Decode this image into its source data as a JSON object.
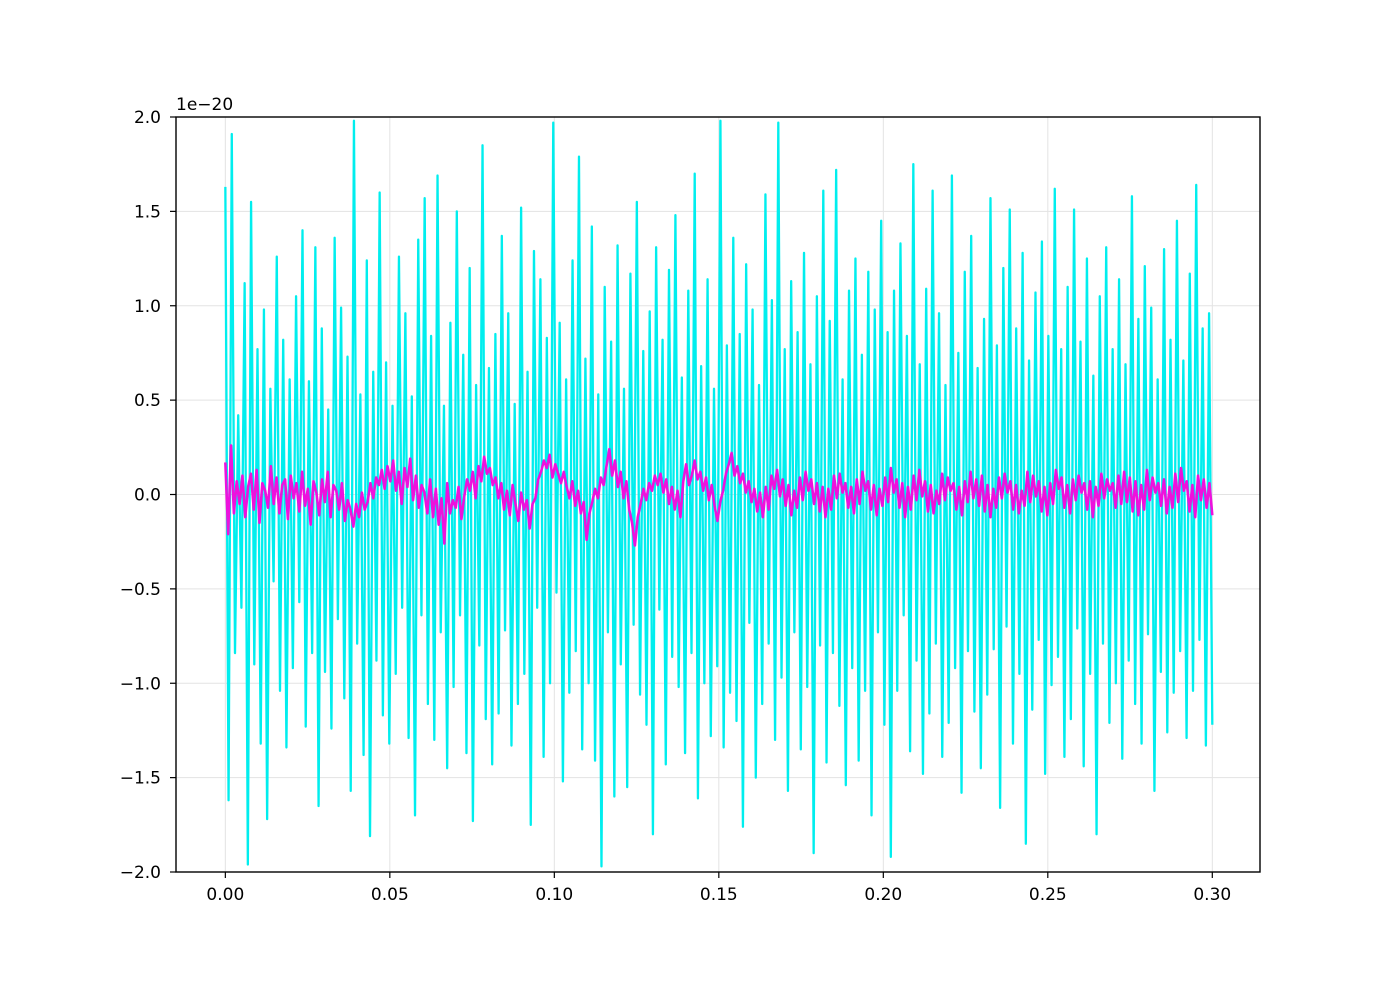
{
  "chart_data": {
    "type": "line",
    "title": "",
    "xlabel": "",
    "ylabel": "",
    "y_offset_label": "1e−20",
    "xlim": [
      -0.015,
      0.3145
    ],
    "ylim": [
      -2.0,
      2.0
    ],
    "xticks": [
      0.0,
      0.05,
      0.1,
      0.15,
      0.2,
      0.25,
      0.3
    ],
    "xtick_labels": [
      "0.00",
      "0.05",
      "0.10",
      "0.15",
      "0.20",
      "0.25",
      "0.30"
    ],
    "yticks": [
      -2.0,
      -1.5,
      -1.0,
      -0.5,
      0.0,
      0.5,
      1.0,
      1.5,
      2.0
    ],
    "ytick_labels": [
      "−2.0",
      "−1.5",
      "−1.0",
      "−0.5",
      "0.0",
      "0.5",
      "1.0",
      "1.5",
      "2.0"
    ],
    "grid": true,
    "legend": "none",
    "series": [
      {
        "color": "#00eeee",
        "x_start": 0.0,
        "x_end": 0.3,
        "values": [
          1.63,
          -1.62,
          1.91,
          -0.84,
          0.42,
          -0.6,
          1.12,
          -1.96,
          1.55,
          -0.9,
          0.77,
          -1.32,
          0.98,
          -1.72,
          0.56,
          -0.46,
          1.26,
          -1.04,
          0.82,
          -1.34,
          0.61,
          -0.92,
          1.05,
          -0.57,
          1.4,
          -1.23,
          0.6,
          -0.84,
          1.31,
          -1.65,
          0.88,
          -0.94,
          0.45,
          -1.24,
          1.36,
          -0.66,
          0.99,
          -1.08,
          0.73,
          -1.57,
          1.98,
          -0.79,
          0.53,
          -1.38,
          1.24,
          -1.81,
          0.65,
          -0.88,
          1.6,
          -1.17,
          0.7,
          -1.32,
          0.47,
          -0.95,
          1.26,
          -0.6,
          0.96,
          -1.29,
          0.52,
          -1.7,
          1.35,
          -0.64,
          1.57,
          -1.11,
          0.84,
          -1.3,
          1.69,
          -0.73,
          0.47,
          -1.45,
          0.91,
          -1.02,
          1.5,
          -0.64,
          0.74,
          -1.37,
          1.2,
          -1.73,
          0.58,
          -0.8,
          1.85,
          -1.19,
          0.67,
          -1.43,
          0.85,
          -1.16,
          1.37,
          -0.72,
          0.96,
          -1.33,
          0.48,
          -1.11,
          1.52,
          -0.95,
          0.65,
          -1.75,
          1.29,
          -0.6,
          1.14,
          -1.39,
          0.83,
          -1.0,
          1.97,
          -0.52,
          0.91,
          -1.52,
          0.61,
          -1.05,
          1.24,
          -0.83,
          1.79,
          -1.35,
          0.72,
          -1.0,
          1.42,
          -1.41,
          0.53,
          -1.97,
          1.1,
          -0.73,
          0.81,
          -1.6,
          1.32,
          -0.9,
          0.56,
          -1.55,
          1.17,
          -0.69,
          1.55,
          -1.06,
          0.76,
          -1.22,
          0.97,
          -1.8,
          1.31,
          -0.61,
          0.82,
          -1.43,
          1.19,
          -0.86,
          1.48,
          -1.02,
          0.62,
          -1.37,
          1.08,
          -0.84,
          1.7,
          -1.61,
          0.68,
          -1.0,
          1.14,
          -1.28,
          0.56,
          -0.91,
          1.98,
          -1.34,
          0.79,
          -1.05,
          1.36,
          -1.2,
          0.85,
          -1.76,
          1.22,
          -0.68,
          0.98,
          -1.5,
          0.58,
          -1.11,
          1.59,
          -0.79,
          1.03,
          -1.3,
          1.97,
          -0.97,
          0.77,
          -1.57,
          1.13,
          -0.73,
          0.86,
          -1.35,
          1.28,
          -1.02,
          0.69,
          -1.9,
          1.05,
          -0.8,
          1.61,
          -1.42,
          0.92,
          -0.84,
          1.72,
          -1.12,
          0.61,
          -1.54,
          1.08,
          -0.92,
          1.25,
          -1.41,
          0.74,
          -1.04,
          1.18,
          -1.7,
          0.98,
          -0.73,
          1.45,
          -1.22,
          0.86,
          -1.92,
          1.08,
          -1.04,
          1.33,
          -0.64,
          0.84,
          -1.36,
          1.75,
          -0.88,
          0.69,
          -1.48,
          1.09,
          -1.16,
          1.61,
          -0.79,
          0.96,
          -1.39,
          0.58,
          -1.21,
          1.69,
          -0.92,
          0.75,
          -1.58,
          1.18,
          -0.83,
          1.37,
          -1.15,
          0.67,
          -1.45,
          0.93,
          -1.06,
          1.57,
          -0.82,
          0.79,
          -1.66,
          1.2,
          -0.7,
          1.51,
          -1.32,
          0.88,
          -0.95,
          1.28,
          -1.85,
          0.71,
          -1.14,
          1.07,
          -0.77,
          1.34,
          -1.48,
          0.84,
          -1.01,
          1.62,
          -0.86,
          0.77,
          -1.39,
          1.1,
          -1.19,
          1.51,
          -0.71,
          0.81,
          -1.44,
          1.25,
          -0.95,
          0.63,
          -1.8,
          1.05,
          -0.79,
          1.31,
          -1.21,
          0.77,
          -1.0,
          1.14,
          -1.4,
          0.69,
          -0.88,
          1.58,
          -1.11,
          0.93,
          -1.32,
          1.21,
          -0.74,
          0.99,
          -1.57,
          0.61,
          -0.94,
          1.3,
          -1.26,
          0.82,
          -1.05,
          1.45,
          -0.83,
          0.71,
          -1.29,
          1.17,
          -1.04,
          1.64,
          -0.77,
          0.88,
          -1.33,
          0.96,
          -1.22
        ]
      },
      {
        "color": "#ee11dd",
        "x_start": 0.0,
        "x_end": 0.3,
        "values": [
          0.17,
          -0.21,
          0.26,
          -0.1,
          0.07,
          -0.05,
          0.1,
          -0.12,
          0.04,
          0.11,
          -0.08,
          0.13,
          -0.15,
          0.06,
          0.02,
          -0.07,
          0.15,
          -0.05,
          0.09,
          -0.1,
          0.05,
          0.08,
          -0.13,
          0.1,
          -0.02,
          0.06,
          -0.09,
          0.12,
          -0.06,
          0.03,
          -0.16,
          0.07,
          0.01,
          -0.11,
          0.08,
          -0.04,
          0.12,
          -0.12,
          0.05,
          0.02,
          -0.08,
          0.06,
          -0.14,
          -0.03,
          -0.08,
          -0.17,
          -0.05,
          -0.12,
          0.01,
          -0.08,
          -0.04,
          0.06,
          -0.02,
          0.09,
          0.05,
          0.13,
          0.03,
          0.15,
          0.07,
          0.18,
          0.02,
          0.12,
          -0.05,
          0.14,
          0.04,
          0.19,
          -0.03,
          0.1,
          -0.07,
          0.05,
          0.01,
          -0.1,
          0.08,
          -0.12,
          0.03,
          -0.16,
          -0.02,
          -0.26,
          0.06,
          -0.1,
          -0.03,
          -0.07,
          0.04,
          -0.13,
          -0.01,
          0.08,
          0.02,
          0.12,
          -0.02,
          0.15,
          0.07,
          0.2,
          0.11,
          0.14,
          0.05,
          0.09,
          -0.02,
          0.06,
          -0.08,
          0.02,
          -0.11,
          0.05,
          -0.05,
          -0.14,
          0.01,
          -0.08,
          -0.03,
          -0.18,
          -0.05,
          -0.02,
          0.08,
          0.12,
          0.18,
          0.14,
          0.21,
          0.09,
          0.16,
          0.11,
          0.06,
          0.12,
          0.04,
          -0.02,
          0.07,
          -0.06,
          0.02,
          -0.1,
          -0.04,
          -0.24,
          -0.1,
          -0.04,
          0.03,
          -0.02,
          0.09,
          0.05,
          0.15,
          0.24,
          0.1,
          0.18,
          0.04,
          0.12,
          -0.02,
          0.07,
          -0.08,
          -0.15,
          -0.27,
          -0.12,
          -0.05,
          0.03,
          -0.03,
          0.06,
          0.02,
          0.1,
          0.05,
          0.11,
          0.01,
          0.08,
          -0.05,
          0.04,
          -0.08,
          0.02,
          -0.12,
          0.07,
          0.16,
          0.05,
          0.1,
          0.18,
          0.08,
          0.12,
          0.02,
          0.09,
          -0.03,
          0.05,
          -0.06,
          -0.14,
          -0.04,
          0.02,
          0.11,
          0.16,
          0.22,
          0.1,
          0.15,
          0.06,
          0.11,
          0.01,
          0.07,
          -0.04,
          0.03,
          -0.09,
          0.01,
          -0.12,
          0.04,
          -0.08,
          0.1,
          0.03,
          0.13,
          -0.01,
          0.08,
          -0.06,
          0.05,
          -0.11,
          0.02,
          -0.07,
          0.09,
          -0.03,
          0.12,
          0.02,
          0.08,
          -0.05,
          0.06,
          -0.09,
          0.04,
          -0.12,
          0.03,
          -0.08,
          0.1,
          -0.02,
          0.11,
          0.01,
          0.06,
          -0.07,
          0.04,
          -0.1,
          0.08,
          -0.05,
          0.12,
          0.02,
          0.07,
          -0.08,
          0.05,
          -0.11,
          0.03,
          -0.06,
          0.09,
          -0.04,
          0.14,
          0.01,
          0.08,
          -0.07,
          0.06,
          -0.12,
          0.04,
          -0.08,
          0.1,
          -0.03,
          0.13,
          -0.01,
          0.07,
          -0.09,
          0.05,
          -0.1,
          0.02,
          -0.05,
          0.11,
          -0.03,
          0.09,
          0.02,
          0.06,
          -0.08,
          0.04,
          -0.11,
          0.07,
          -0.04,
          0.12,
          -0.02,
          0.08,
          -0.06,
          0.1,
          -0.09,
          0.05,
          -0.12,
          0.03,
          -0.07,
          0.09,
          -0.02,
          0.11,
          0.01,
          0.07,
          -0.08,
          0.05,
          -0.1,
          0.02,
          -0.06,
          0.12,
          -0.04,
          0.1,
          -0.01,
          0.07,
          -0.09,
          0.04,
          -0.11,
          0.06,
          -0.05,
          0.13,
          0.03,
          0.09,
          -0.07,
          0.05,
          -0.1,
          0.08,
          -0.03,
          0.1,
          0.01,
          0.06,
          -0.08,
          0.07,
          -0.12,
          0.04,
          -0.06,
          0.11,
          -0.02,
          0.08,
          0.02,
          0.06,
          -0.07,
          0.1,
          -0.05,
          0.12,
          -0.04,
          0.09,
          -0.09,
          0.07,
          -0.11,
          0.05,
          -0.08,
          0.13,
          -0.03,
          0.09,
          0.01,
          0.06,
          -0.06,
          0.08,
          -0.1,
          0.04,
          -0.07,
          0.11,
          -0.04,
          0.14,
          0.02,
          0.07,
          -0.09,
          0.05,
          -0.12,
          0.1,
          -0.03,
          0.08,
          -0.07,
          0.06,
          -0.11
        ]
      }
    ]
  }
}
